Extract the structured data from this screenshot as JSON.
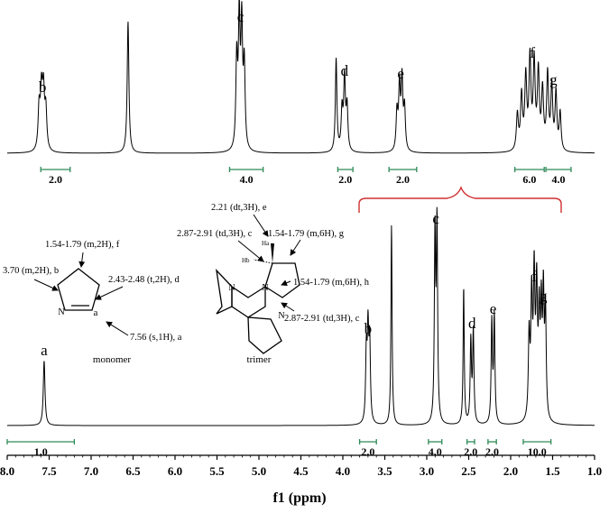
{
  "chart_data": {
    "type": "line",
    "xlabel": "f1 (ppm)",
    "xlim": [
      8.0,
      1.0
    ],
    "x_reversed": true,
    "x_ticks": [
      "8.0",
      "7.5",
      "7.0",
      "6.5",
      "6.0",
      "5.5",
      "5.0",
      "4.5",
      "4.0",
      "3.5",
      "3.0",
      "2.5",
      "2.0",
      "1.5",
      "1.0"
    ],
    "grid": false,
    "colors": {
      "integration": "#2e8b57",
      "bracket": "#d03030",
      "trace": "#000000"
    },
    "spectra": [
      {
        "panel": "top",
        "peaks": [
          {
            "label": "b",
            "ppm": 7.58
          },
          {
            "label": "",
            "ppm": 6.56
          },
          {
            "label": "c",
            "ppm": 5.22
          },
          {
            "label": "d",
            "ppm": 3.98
          },
          {
            "label": "",
            "ppm": 4.08
          },
          {
            "label": "e",
            "ppm": 3.31
          },
          {
            "label": "f",
            "ppm": 1.74
          },
          {
            "label": "g",
            "ppm": 1.49
          }
        ],
        "integrations": [
          {
            "value": "2.0",
            "from": 7.6,
            "to": 7.25
          },
          {
            "value": "4.0",
            "from": 5.35,
            "to": 4.95
          },
          {
            "value": "2.0",
            "from": 4.06,
            "to": 3.88
          },
          {
            "value": "2.0",
            "from": 3.45,
            "to": 3.12
          },
          {
            "value": "6.0",
            "from": 1.95,
            "to": 1.6
          },
          {
            "value": "4.0",
            "from": 1.58,
            "to": 1.28
          }
        ]
      },
      {
        "panel": "bottom",
        "peaks": [
          {
            "label": "a",
            "ppm": 7.56
          },
          {
            "label": "b",
            "ppm": 3.7
          },
          {
            "label": "",
            "ppm": 3.42
          },
          {
            "label": "c",
            "ppm": 2.89
          },
          {
            "label": "",
            "ppm": 2.56
          },
          {
            "label": "d",
            "ppm": 2.46
          },
          {
            "label": "e",
            "ppm": 2.21
          },
          {
            "label": "f",
            "ppm": 1.72
          },
          {
            "label": "g",
            "ppm": 1.61
          }
        ],
        "integrations": [
          {
            "value": "1.0",
            "from": 8.0,
            "to": 7.2
          },
          {
            "value": "2.0",
            "from": 3.8,
            "to": 3.6
          },
          {
            "value": "4.0",
            "from": 2.98,
            "to": 2.82
          },
          {
            "value": "2.0",
            "from": 2.52,
            "to": 2.43
          },
          {
            "value": "2.0",
            "from": 2.27,
            "to": 2.17
          },
          {
            "value": "10.0",
            "from": 1.85,
            "to": 1.52
          }
        ]
      }
    ],
    "annotations": {
      "monomer": {
        "caption": "monomer",
        "ring_atoms": {
          "n": "N",
          "a": "a"
        },
        "assignments": [
          "1.54-1.79 (m,2H), f",
          "3.70 (m,2H), b",
          "2.43-2.48 (t,2H), d",
          "7.56 (s,1H), a"
        ]
      },
      "trimer": {
        "caption": "trimer",
        "ring_atoms": [
          "N",
          "N",
          "N"
        ],
        "h_labels": {
          "ha": "Ha",
          "hb": "Hb"
        },
        "assignments": [
          "2.21 (dt,3H), e",
          "2.87-2.91 (td,3H), c",
          "1.54-1.79 (m,6H), g",
          "1.54-1.79 (m,6H), h",
          "2.87-2.91 (td,3H), c"
        ]
      }
    }
  }
}
